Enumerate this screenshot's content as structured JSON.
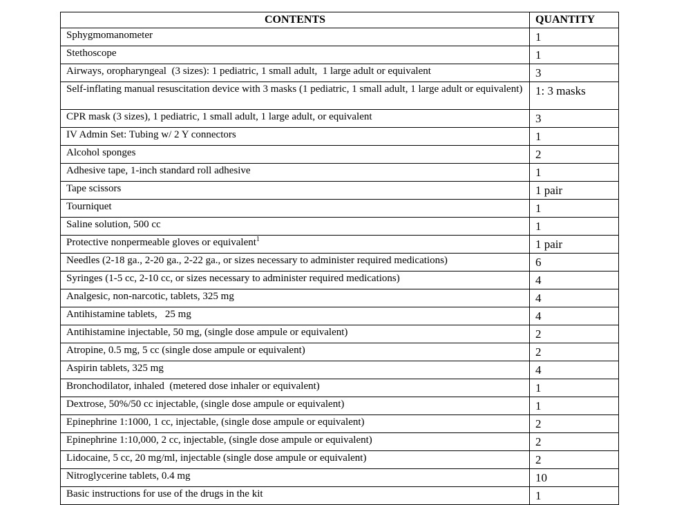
{
  "table": {
    "headers": [
      "CONTENTS",
      "QUANTITY"
    ],
    "rows": [
      {
        "item": "Sphygmomanometer",
        "qty": "1"
      },
      {
        "item": "Stethoscope",
        "qty": "1"
      },
      {
        "item": "Airways, oropharyngeal  (3 sizes): 1 pediatric, 1 small adult,  1 large adult or equivalent",
        "qty": "3"
      },
      {
        "item": "Self-inflating manual resuscitation device with 3 masks (1 pediatric, 1 small adult, 1 large adult or equivalent)",
        "qty": "1: 3 masks"
      },
      {
        "item": "CPR mask (3 sizes), 1 pediatric, 1 small adult, 1 large adult, or equivalent",
        "qty": "3"
      },
      {
        "item": "IV Admin Set: Tubing w/ 2 Y connectors",
        "qty": "1"
      },
      {
        "item": "Alcohol sponges",
        "qty": "2"
      },
      {
        "item": "Adhesive tape, 1-inch standard roll adhesive",
        "qty": "1"
      },
      {
        "item": "Tape scissors",
        "qty": "1 pair"
      },
      {
        "item": "Tourniquet",
        "qty": "1"
      },
      {
        "item": "Saline solution, 500 cc",
        "qty": "1"
      },
      {
        "item": "Protective nonpermeable gloves or equivalent",
        "sup": "1",
        "qty": "1 pair"
      },
      {
        "item": "Needles (2-18 ga., 2-20 ga., 2-22 ga., or sizes necessary to administer required medications)",
        "qty": "6"
      },
      {
        "item": "Syringes (1-5 cc, 2-10 cc, or sizes necessary to administer required medications)",
        "qty": "4"
      },
      {
        "item": "Analgesic, non-narcotic, tablets, 325 mg",
        "qty": "4"
      },
      {
        "item": "Antihistamine tablets,   25 mg",
        "qty": "4"
      },
      {
        "item": "Antihistamine injectable, 50 mg, (single dose ampule or equivalent)",
        "qty": "2"
      },
      {
        "item": "Atropine, 0.5 mg, 5 cc (single dose ampule or equivalent)",
        "qty": "2"
      },
      {
        "item": "Aspirin tablets, 325 mg",
        "qty": "4"
      },
      {
        "item": "Bronchodilator, inhaled  (metered dose inhaler or equivalent)",
        "qty": "1"
      },
      {
        "item": "Dextrose, 50%/50 cc injectable, (single dose ampule or equivalent)",
        "qty": "1"
      },
      {
        "item": "Epinephrine 1:1000, 1 cc, injectable, (single dose ampule or equivalent)",
        "qty": "2"
      },
      {
        "item": "Epinephrine 1:10,000, 2 cc, injectable, (single dose ampule or equivalent)",
        "qty": "2"
      },
      {
        "item": "Lidocaine, 5 cc, 20 mg/ml, injectable (single dose ampule or equivalent)",
        "qty": "2"
      },
      {
        "item": "Nitroglycerine tablets, 0.4 mg",
        "qty": "10"
      },
      {
        "item": "Basic instructions for use of the drugs in the kit",
        "qty": "1"
      }
    ]
  }
}
